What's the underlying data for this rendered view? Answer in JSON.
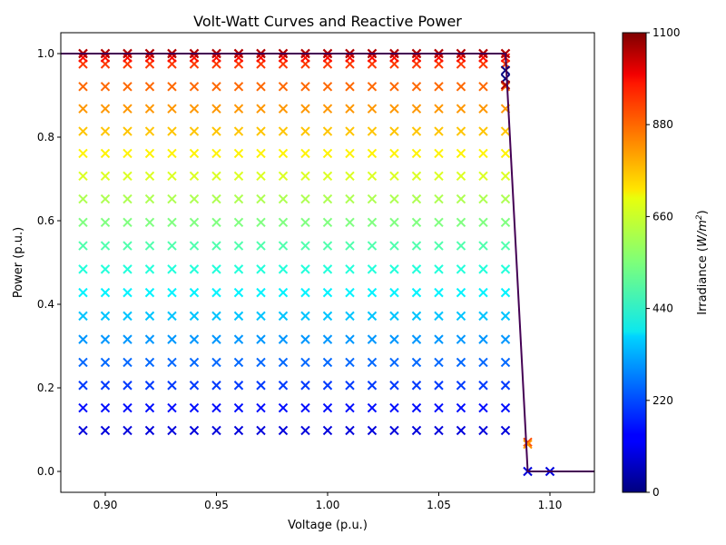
{
  "chart_data": {
    "type": "scatter",
    "title": "Volt-Watt Curves and Reactive Power",
    "xlabel": "Voltage (p.u.)",
    "ylabel": "Power (p.u.)",
    "xlim": [
      0.88,
      1.12
    ],
    "ylim": [
      -0.05,
      1.05
    ],
    "x_ticks": [
      "0.90",
      "0.95",
      "1.00",
      "1.05",
      "1.10"
    ],
    "y_ticks": [
      "0.0",
      "0.2",
      "0.4",
      "0.6",
      "0.8",
      "1.0"
    ],
    "grid": false,
    "colorbar": {
      "label_prefix": "Irradiance (",
      "label_unit": "W/m",
      "label_exp": "2",
      "label_suffix": ")",
      "range": [
        0,
        1100
      ],
      "ticks": [
        "0",
        "220",
        "440",
        "660",
        "880",
        "1100"
      ],
      "colormap": "jet"
    },
    "curve": {
      "color": "#440154",
      "x": [
        0.88,
        1.08,
        1.09,
        1.12
      ],
      "y": [
        1.0,
        1.0,
        0.0,
        0.0
      ]
    },
    "scatter": {
      "marker": "x",
      "voltage_grid": [
        0.89,
        0.9,
        0.91,
        0.92,
        0.93,
        0.94,
        0.95,
        0.96,
        0.97,
        0.98,
        0.99,
        1.0,
        1.01,
        1.02,
        1.03,
        1.04,
        1.05,
        1.06,
        1.07,
        1.08
      ],
      "irradiance_levels": [
        100,
        150,
        200,
        250,
        300,
        350,
        400,
        450,
        500,
        550,
        600,
        650,
        700,
        750,
        800,
        850,
        900,
        950,
        1000,
        1050
      ],
      "power_levels": [
        0.098,
        0.152,
        0.206,
        0.261,
        0.316,
        0.372,
        0.428,
        0.484,
        0.54,
        0.596,
        0.652,
        0.707,
        0.761,
        0.814,
        0.868,
        0.921,
        0.975,
        0.99,
        1.0,
        1.0
      ],
      "extra_points": [
        {
          "x": 1.08,
          "y": 0.96,
          "irradiance": 0
        },
        {
          "x": 1.08,
          "y": 0.94,
          "irradiance": 0
        },
        {
          "x": 1.08,
          "y": 0.925,
          "irradiance": 1050
        },
        {
          "x": 1.09,
          "y": 0.07,
          "irradiance": 880
        },
        {
          "x": 1.09,
          "y": 0.065,
          "irradiance": 800
        },
        {
          "x": 1.09,
          "y": 0.0,
          "irradiance": 100
        },
        {
          "x": 1.1,
          "y": 0.0,
          "irradiance": 100
        }
      ]
    }
  }
}
